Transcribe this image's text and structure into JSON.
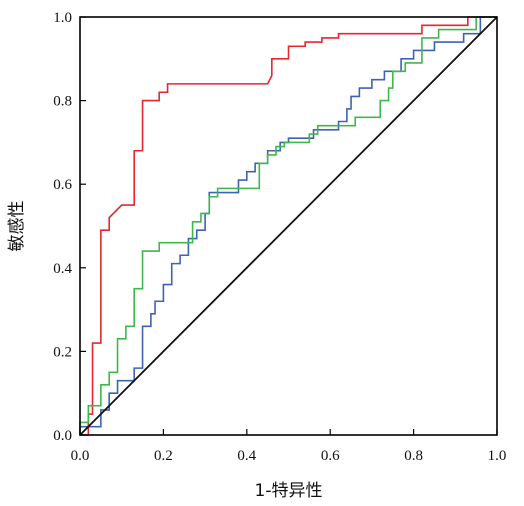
{
  "chart_data": {
    "type": "line",
    "xlabel": "1-特异性",
    "ylabel": "敏感性",
    "xlim": [
      0,
      1
    ],
    "ylim": [
      0,
      1
    ],
    "x_ticks": [
      "0.0",
      "0.2",
      "0.4",
      "0.6",
      "0.8",
      "1.0"
    ],
    "y_ticks": [
      "0.0",
      "0.2",
      "0.4",
      "0.6",
      "0.8",
      "1.0"
    ],
    "grid": false,
    "legend": "none",
    "series": [
      {
        "color": "#e8262e",
        "points": [
          [
            0,
            0
          ],
          [
            0.02,
            0
          ],
          [
            0.02,
            0.05
          ],
          [
            0.03,
            0.05
          ],
          [
            0.03,
            0.22
          ],
          [
            0.05,
            0.22
          ],
          [
            0.05,
            0.49
          ],
          [
            0.07,
            0.49
          ],
          [
            0.07,
            0.52
          ],
          [
            0.1,
            0.55
          ],
          [
            0.13,
            0.55
          ],
          [
            0.13,
            0.68
          ],
          [
            0.15,
            0.68
          ],
          [
            0.15,
            0.8
          ],
          [
            0.19,
            0.8
          ],
          [
            0.19,
            0.82
          ],
          [
            0.21,
            0.82
          ],
          [
            0.21,
            0.84
          ],
          [
            0.45,
            0.84
          ],
          [
            0.46,
            0.86
          ],
          [
            0.46,
            0.9
          ],
          [
            0.5,
            0.9
          ],
          [
            0.5,
            0.93
          ],
          [
            0.54,
            0.93
          ],
          [
            0.54,
            0.94
          ],
          [
            0.58,
            0.94
          ],
          [
            0.58,
            0.95
          ],
          [
            0.62,
            0.95
          ],
          [
            0.62,
            0.96
          ],
          [
            0.82,
            0.96
          ],
          [
            0.82,
            0.98
          ],
          [
            0.93,
            0.98
          ],
          [
            0.93,
            1.0
          ],
          [
            0.97,
            1.0
          ],
          [
            1.0,
            1.0
          ]
        ]
      },
      {
        "color": "#3d63b2",
        "points": [
          [
            0,
            0
          ],
          [
            0,
            0.02
          ],
          [
            0.05,
            0.02
          ],
          [
            0.05,
            0.06
          ],
          [
            0.07,
            0.06
          ],
          [
            0.07,
            0.1
          ],
          [
            0.09,
            0.1
          ],
          [
            0.09,
            0.13
          ],
          [
            0.13,
            0.13
          ],
          [
            0.13,
            0.16
          ],
          [
            0.15,
            0.16
          ],
          [
            0.15,
            0.26
          ],
          [
            0.17,
            0.26
          ],
          [
            0.17,
            0.29
          ],
          [
            0.18,
            0.29
          ],
          [
            0.18,
            0.32
          ],
          [
            0.2,
            0.32
          ],
          [
            0.2,
            0.36
          ],
          [
            0.22,
            0.36
          ],
          [
            0.22,
            0.41
          ],
          [
            0.24,
            0.41
          ],
          [
            0.24,
            0.43
          ],
          [
            0.26,
            0.43
          ],
          [
            0.26,
            0.47
          ],
          [
            0.28,
            0.47
          ],
          [
            0.28,
            0.49
          ],
          [
            0.3,
            0.49
          ],
          [
            0.3,
            0.53
          ],
          [
            0.31,
            0.53
          ],
          [
            0.31,
            0.58
          ],
          [
            0.38,
            0.58
          ],
          [
            0.38,
            0.61
          ],
          [
            0.4,
            0.61
          ],
          [
            0.4,
            0.63
          ],
          [
            0.42,
            0.63
          ],
          [
            0.42,
            0.65
          ],
          [
            0.45,
            0.65
          ],
          [
            0.45,
            0.68
          ],
          [
            0.48,
            0.68
          ],
          [
            0.48,
            0.7
          ],
          [
            0.5,
            0.7
          ],
          [
            0.5,
            0.71
          ],
          [
            0.56,
            0.71
          ],
          [
            0.56,
            0.73
          ],
          [
            0.62,
            0.73
          ],
          [
            0.62,
            0.75
          ],
          [
            0.64,
            0.75
          ],
          [
            0.64,
            0.78
          ],
          [
            0.65,
            0.78
          ],
          [
            0.65,
            0.81
          ],
          [
            0.67,
            0.81
          ],
          [
            0.67,
            0.83
          ],
          [
            0.7,
            0.83
          ],
          [
            0.7,
            0.85
          ],
          [
            0.73,
            0.85
          ],
          [
            0.73,
            0.87
          ],
          [
            0.77,
            0.87
          ],
          [
            0.77,
            0.9
          ],
          [
            0.8,
            0.9
          ],
          [
            0.8,
            0.92
          ],
          [
            0.85,
            0.92
          ],
          [
            0.85,
            0.94
          ],
          [
            0.92,
            0.94
          ],
          [
            0.92,
            0.96
          ],
          [
            0.96,
            0.96
          ],
          [
            0.96,
            1.0
          ],
          [
            1.0,
            1.0
          ]
        ]
      },
      {
        "color": "#3fb84a",
        "points": [
          [
            0,
            0
          ],
          [
            0,
            0.03
          ],
          [
            0.02,
            0.03
          ],
          [
            0.02,
            0.07
          ],
          [
            0.05,
            0.07
          ],
          [
            0.05,
            0.12
          ],
          [
            0.07,
            0.12
          ],
          [
            0.07,
            0.15
          ],
          [
            0.09,
            0.15
          ],
          [
            0.09,
            0.23
          ],
          [
            0.11,
            0.23
          ],
          [
            0.11,
            0.26
          ],
          [
            0.13,
            0.26
          ],
          [
            0.13,
            0.35
          ],
          [
            0.15,
            0.35
          ],
          [
            0.15,
            0.44
          ],
          [
            0.19,
            0.44
          ],
          [
            0.19,
            0.46
          ],
          [
            0.27,
            0.46
          ],
          [
            0.27,
            0.51
          ],
          [
            0.29,
            0.51
          ],
          [
            0.29,
            0.53
          ],
          [
            0.31,
            0.53
          ],
          [
            0.31,
            0.57
          ],
          [
            0.33,
            0.57
          ],
          [
            0.33,
            0.59
          ],
          [
            0.43,
            0.59
          ],
          [
            0.43,
            0.65
          ],
          [
            0.45,
            0.65
          ],
          [
            0.45,
            0.67
          ],
          [
            0.47,
            0.67
          ],
          [
            0.47,
            0.69
          ],
          [
            0.49,
            0.69
          ],
          [
            0.49,
            0.7
          ],
          [
            0.55,
            0.7
          ],
          [
            0.55,
            0.72
          ],
          [
            0.57,
            0.72
          ],
          [
            0.57,
            0.74
          ],
          [
            0.66,
            0.74
          ],
          [
            0.66,
            0.76
          ],
          [
            0.72,
            0.76
          ],
          [
            0.72,
            0.8
          ],
          [
            0.74,
            0.8
          ],
          [
            0.74,
            0.83
          ],
          [
            0.75,
            0.83
          ],
          [
            0.75,
            0.87
          ],
          [
            0.78,
            0.87
          ],
          [
            0.78,
            0.89
          ],
          [
            0.82,
            0.89
          ],
          [
            0.82,
            0.95
          ],
          [
            0.86,
            0.95
          ],
          [
            0.86,
            0.97
          ],
          [
            0.95,
            0.97
          ],
          [
            0.95,
            1.0
          ],
          [
            1.0,
            1.0
          ]
        ]
      },
      {
        "color": "#111111",
        "points": [
          [
            0,
            0
          ],
          [
            1,
            1
          ]
        ]
      }
    ]
  }
}
